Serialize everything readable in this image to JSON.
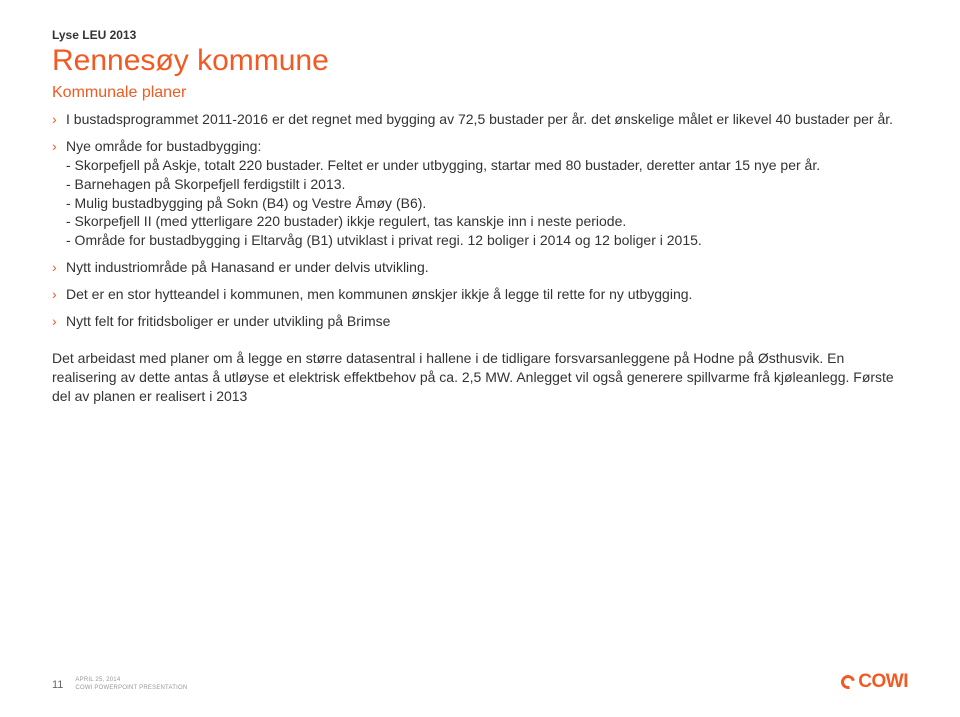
{
  "supertitle": "Lyse LEU 2013",
  "title": "Rennesøy kommune",
  "subtitle": "Kommunale planer",
  "bullets": [
    {
      "text": "I bustadsprogrammet 2011-2016 er det regnet med bygging av 72,5 bustader per år. det ønskelige målet er likevel 40 bustader per år.",
      "sublines": []
    },
    {
      "text": "Nye område for bustadbygging:",
      "sublines": [
        "- Skorpefjell på Askje, totalt 220 bustader. Feltet er under utbygging, startar med 80 bustader, deretter antar 15 nye per år.",
        "- Barnehagen på Skorpefjell ferdigstilt i 2013.",
        "- Mulig bustadbygging på Sokn (B4) og Vestre Åmøy (B6).",
        "- Skorpefjell II (med ytterligare 220 bustader) ikkje regulert, tas kanskje inn i neste periode.",
        "- Område for bustadbygging i Eltarvåg (B1) utviklast i privat regi. 12 boliger i 2014 og 12 boliger i 2015."
      ]
    },
    {
      "text": "Nytt industriområde på Hanasand er under delvis utvikling.",
      "sublines": []
    },
    {
      "text": "Det er en stor hytteandel i kommunen, men kommunen ønskjer ikkje å legge til rette for ny utbygging.",
      "sublines": []
    },
    {
      "text": "Nytt felt for fritidsboliger er under utvikling på Brimse",
      "sublines": []
    }
  ],
  "paragraph": "Det arbeidast med planer om å legge en større datasentral i hallene i de tidligare forsvarsanleggene på Hodne på Østhusvik. En realisering av dette antas å utløyse et elektrisk effektbehov på ca. 2,5 MW. Anlegget vil også generere spillvarme frå kjøleanlegg. Første del av planen er realisert i 2013",
  "footer": {
    "page": "11",
    "date": "APRIL 25, 2014",
    "credit": "COWI POWERPOINT PRESENTATION"
  },
  "logo": {
    "text": "COWI"
  },
  "colors": {
    "accent": "#f15a22",
    "body": "#333333",
    "meta": "#999999",
    "background": "#ffffff"
  },
  "typography": {
    "title_fontsize": 30,
    "subtitle_fontsize": 16,
    "body_fontsize": 14,
    "supertitle_fontsize": 12
  }
}
